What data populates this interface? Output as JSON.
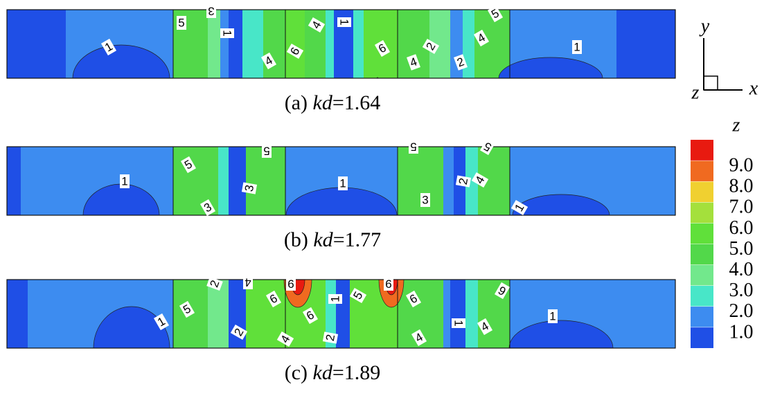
{
  "chart_data": {
    "type": "contour",
    "panels": [
      {
        "caption": {
          "prefix": "(a) ",
          "variable": "kd",
          "suffix": "=1.64"
        },
        "contour_labels": [
          "1",
          "5",
          "3",
          "1",
          "4",
          "6",
          "4",
          "1",
          "6",
          "4",
          "2",
          "2",
          "4",
          "5",
          "1"
        ]
      },
      {
        "caption": {
          "prefix": "(b) ",
          "variable": "kd",
          "suffix": "=1.77"
        },
        "contour_labels": [
          "1",
          "5",
          "3",
          "3",
          "5",
          "1",
          "5",
          "3",
          "2",
          "4",
          "5",
          "1"
        ]
      },
      {
        "caption": {
          "prefix": "(c) ",
          "variable": "kd",
          "suffix": "=1.89"
        },
        "contour_labels": [
          "1",
          "5",
          "2",
          "4",
          "6",
          "9",
          "6",
          "2",
          "4",
          "1",
          "5",
          "2",
          "9",
          "6",
          "4",
          "1",
          "4",
          "6",
          "1"
        ]
      }
    ],
    "axes_indicator": {
      "y": "y",
      "x": "x",
      "z": "z"
    },
    "colorbar": {
      "title": "z",
      "ticks": [
        {
          "value": 1,
          "label": "1.0"
        },
        {
          "value": 2,
          "label": "2.0"
        },
        {
          "value": 3,
          "label": "3.0"
        },
        {
          "value": 4,
          "label": "4.0"
        },
        {
          "value": 5,
          "label": "5.0"
        },
        {
          "value": 6,
          "label": "6.0"
        },
        {
          "value": 7,
          "label": "7.0"
        },
        {
          "value": 8,
          "label": "8.0"
        },
        {
          "value": 9,
          "label": "9.0"
        }
      ],
      "lim": [
        0,
        10
      ],
      "colors": [
        "#1f4fe6",
        "#3d8cf0",
        "#48e6c8",
        "#72e88c",
        "#52d84a",
        "#60e03a",
        "#a4e03c",
        "#f0d030",
        "#f06a20",
        "#e81a10"
      ]
    }
  }
}
